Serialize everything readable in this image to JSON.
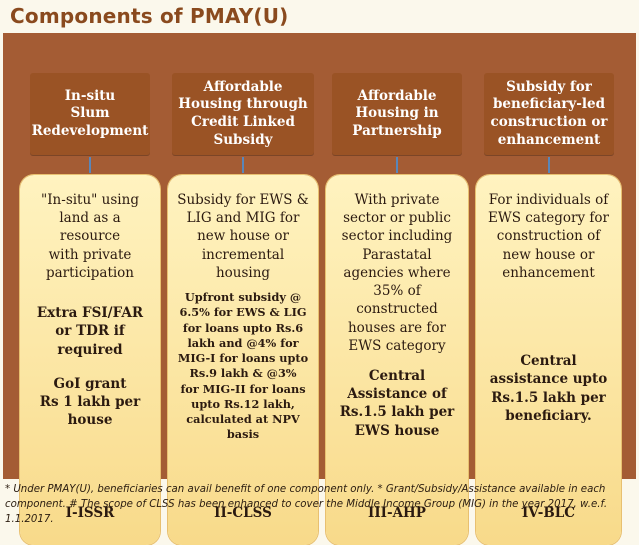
{
  "title": "Components of PMAY(U)",
  "components": [
    {
      "heading": "In-situ\nSlum\nRedevelopment",
      "description": "\"In-situ\" using\nland as a resource\nwith private\nparticipation",
      "benefit_1": "Extra FSI/FAR\nor TDR if\nrequired",
      "benefit_2": "GoI grant\nRs 1 lakh per\nhouse",
      "code": "I-ISSR"
    },
    {
      "heading": "Affordable\nHousing through\nCredit Linked\nSubsidy",
      "description": "Subsidy for EWS &\nLIG and MIG for\nnew house  or\nincremental\nhousing",
      "benefit_1": "Upfront subsidy @\n6.5% for EWS & LIG\nfor loans upto Rs.6\nlakh and @4% for\nMIG-I for loans upto\nRs.9 lakh & @3%\nfor MIG-II for loans\nupto Rs.12 lakh,\ncalculated at NPV\nbasis",
      "code": "II-CLSS"
    },
    {
      "heading": "Affordable\nHousing in\nPartnership",
      "description": "With private\nsector or public\nsector including\nParastatal\nagencies where\n35% of\nconstructed\nhouses are for\nEWS category",
      "benefit_1": "Central\nAssistance of\nRs.1.5 lakh per\nEWS house",
      "code": "III-AHP"
    },
    {
      "heading": "Subsidy for\nbeneficiary-led\nconstruction or\nenhancement",
      "description": "For individuals of\nEWS category for\nconstruction of\nnew house or\nenhancement",
      "benefit_1": "Central\nassistance upto\nRs.1.5 lakh per\nbeneficiary.",
      "code": "IV-BLC"
    }
  ],
  "footnote": "* Under PMAY(U), beneficiaries can avail benefit of one component only.  * Grant/Subsidy/Assistance available in each component. # The scope of CLSS has been enhanced to cover the Middle Income Group (MIG) in the year 2017, w.e.f. 1.1.2017.",
  "colors": {
    "panel": "#a45c34",
    "heading_box": "#9a5325",
    "card": "#f8da8a",
    "connector": "#5a86b8",
    "title": "#8a4a1e"
  }
}
